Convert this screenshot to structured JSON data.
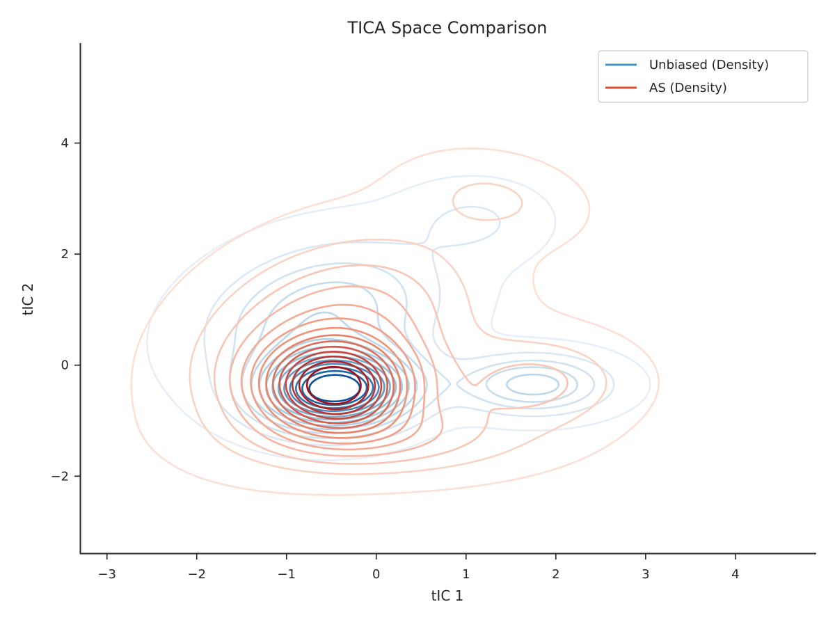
{
  "chart_data": {
    "type": "contour",
    "title": "TICA Space Comparison",
    "xlabel": "tIC 1",
    "ylabel": "tIC 2",
    "xlim": [
      -3.3,
      4.9
    ],
    "ylim": [
      -3.4,
      5.8
    ],
    "xticks": [
      -3,
      -2,
      -1,
      0,
      1,
      2,
      3,
      4
    ],
    "yticks": [
      -2,
      0,
      2,
      4
    ],
    "grid": false,
    "legend_position": "top-right",
    "series": [
      {
        "name": "Unbiased (Density)",
        "color": "#4292c6",
        "palette": "Blues",
        "peaks": [
          {
            "x": -0.45,
            "y": -0.45
          },
          {
            "x": 1.75,
            "y": -0.35
          },
          {
            "x": 1.1,
            "y": 2.6
          }
        ]
      },
      {
        "name": "AS (Density)",
        "color": "#e34a33",
        "palette": "Reds",
        "peaks": [
          {
            "x": -0.45,
            "y": -0.4
          },
          {
            "x": 1.8,
            "y": -0.3
          },
          {
            "x": 1.3,
            "y": 3.0
          }
        ]
      }
    ]
  }
}
